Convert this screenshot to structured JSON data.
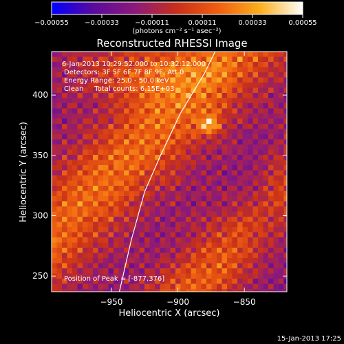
{
  "chart_data": {
    "type": "heatmap",
    "title": "Reconstructed RHESSI Image",
    "xlabel": "Heliocentric X (arcsec)",
    "ylabel": "Heliocentric Y (arcsec)",
    "xlim": [
      -995,
      -818
    ],
    "ylim": [
      237,
      436
    ],
    "x_ticks": [
      -950,
      -900,
      -850
    ],
    "x_tick_labels": [
      "−950",
      "−900",
      "−850"
    ],
    "y_ticks": [
      250,
      300,
      350,
      400
    ],
    "y_tick_labels": [
      "250",
      "300",
      "350",
      "400"
    ],
    "colorbar": {
      "range": [
        -0.00055,
        0.00055
      ],
      "ticks": [
        -0.00055,
        -0.00033,
        -0.00011,
        0.00011,
        0.00033,
        0.00055
      ],
      "tick_labels": [
        "−0.00055",
        "−0.00033",
        "−0.00011",
        "0.00011",
        "0.00033",
        "0.00055"
      ],
      "units": "(photons cm⁻² s⁻¹ asec⁻²)",
      "colors": [
        "#0000ff",
        "#5a0a9c",
        "#8c1a7a",
        "#c8301a",
        "#f06010",
        "#fbb020",
        "#ffffff"
      ]
    },
    "info_lines": [
      "6-Jan-2013 10:29:52.000 to 10:32:12.000",
      "Detectors: 3F 5F 6F 7F 8F 9F, Att 0",
      "Energy Range: 25.0 - 50.0 keV",
      "Clean     Total counts: 6.15E+03"
    ],
    "peak_label": "Position of Peak = [-877,376]",
    "peak": [
      -877,
      376
    ],
    "limb_curve": [
      [
        -944,
        237
      ],
      [
        -935,
        280
      ],
      [
        -925,
        320
      ],
      [
        -913,
        350
      ],
      [
        -898,
        385
      ],
      [
        -880,
        418
      ],
      [
        -872,
        436
      ]
    ],
    "timestamp": "15-Jan-2013 17:25",
    "grid": false
  }
}
